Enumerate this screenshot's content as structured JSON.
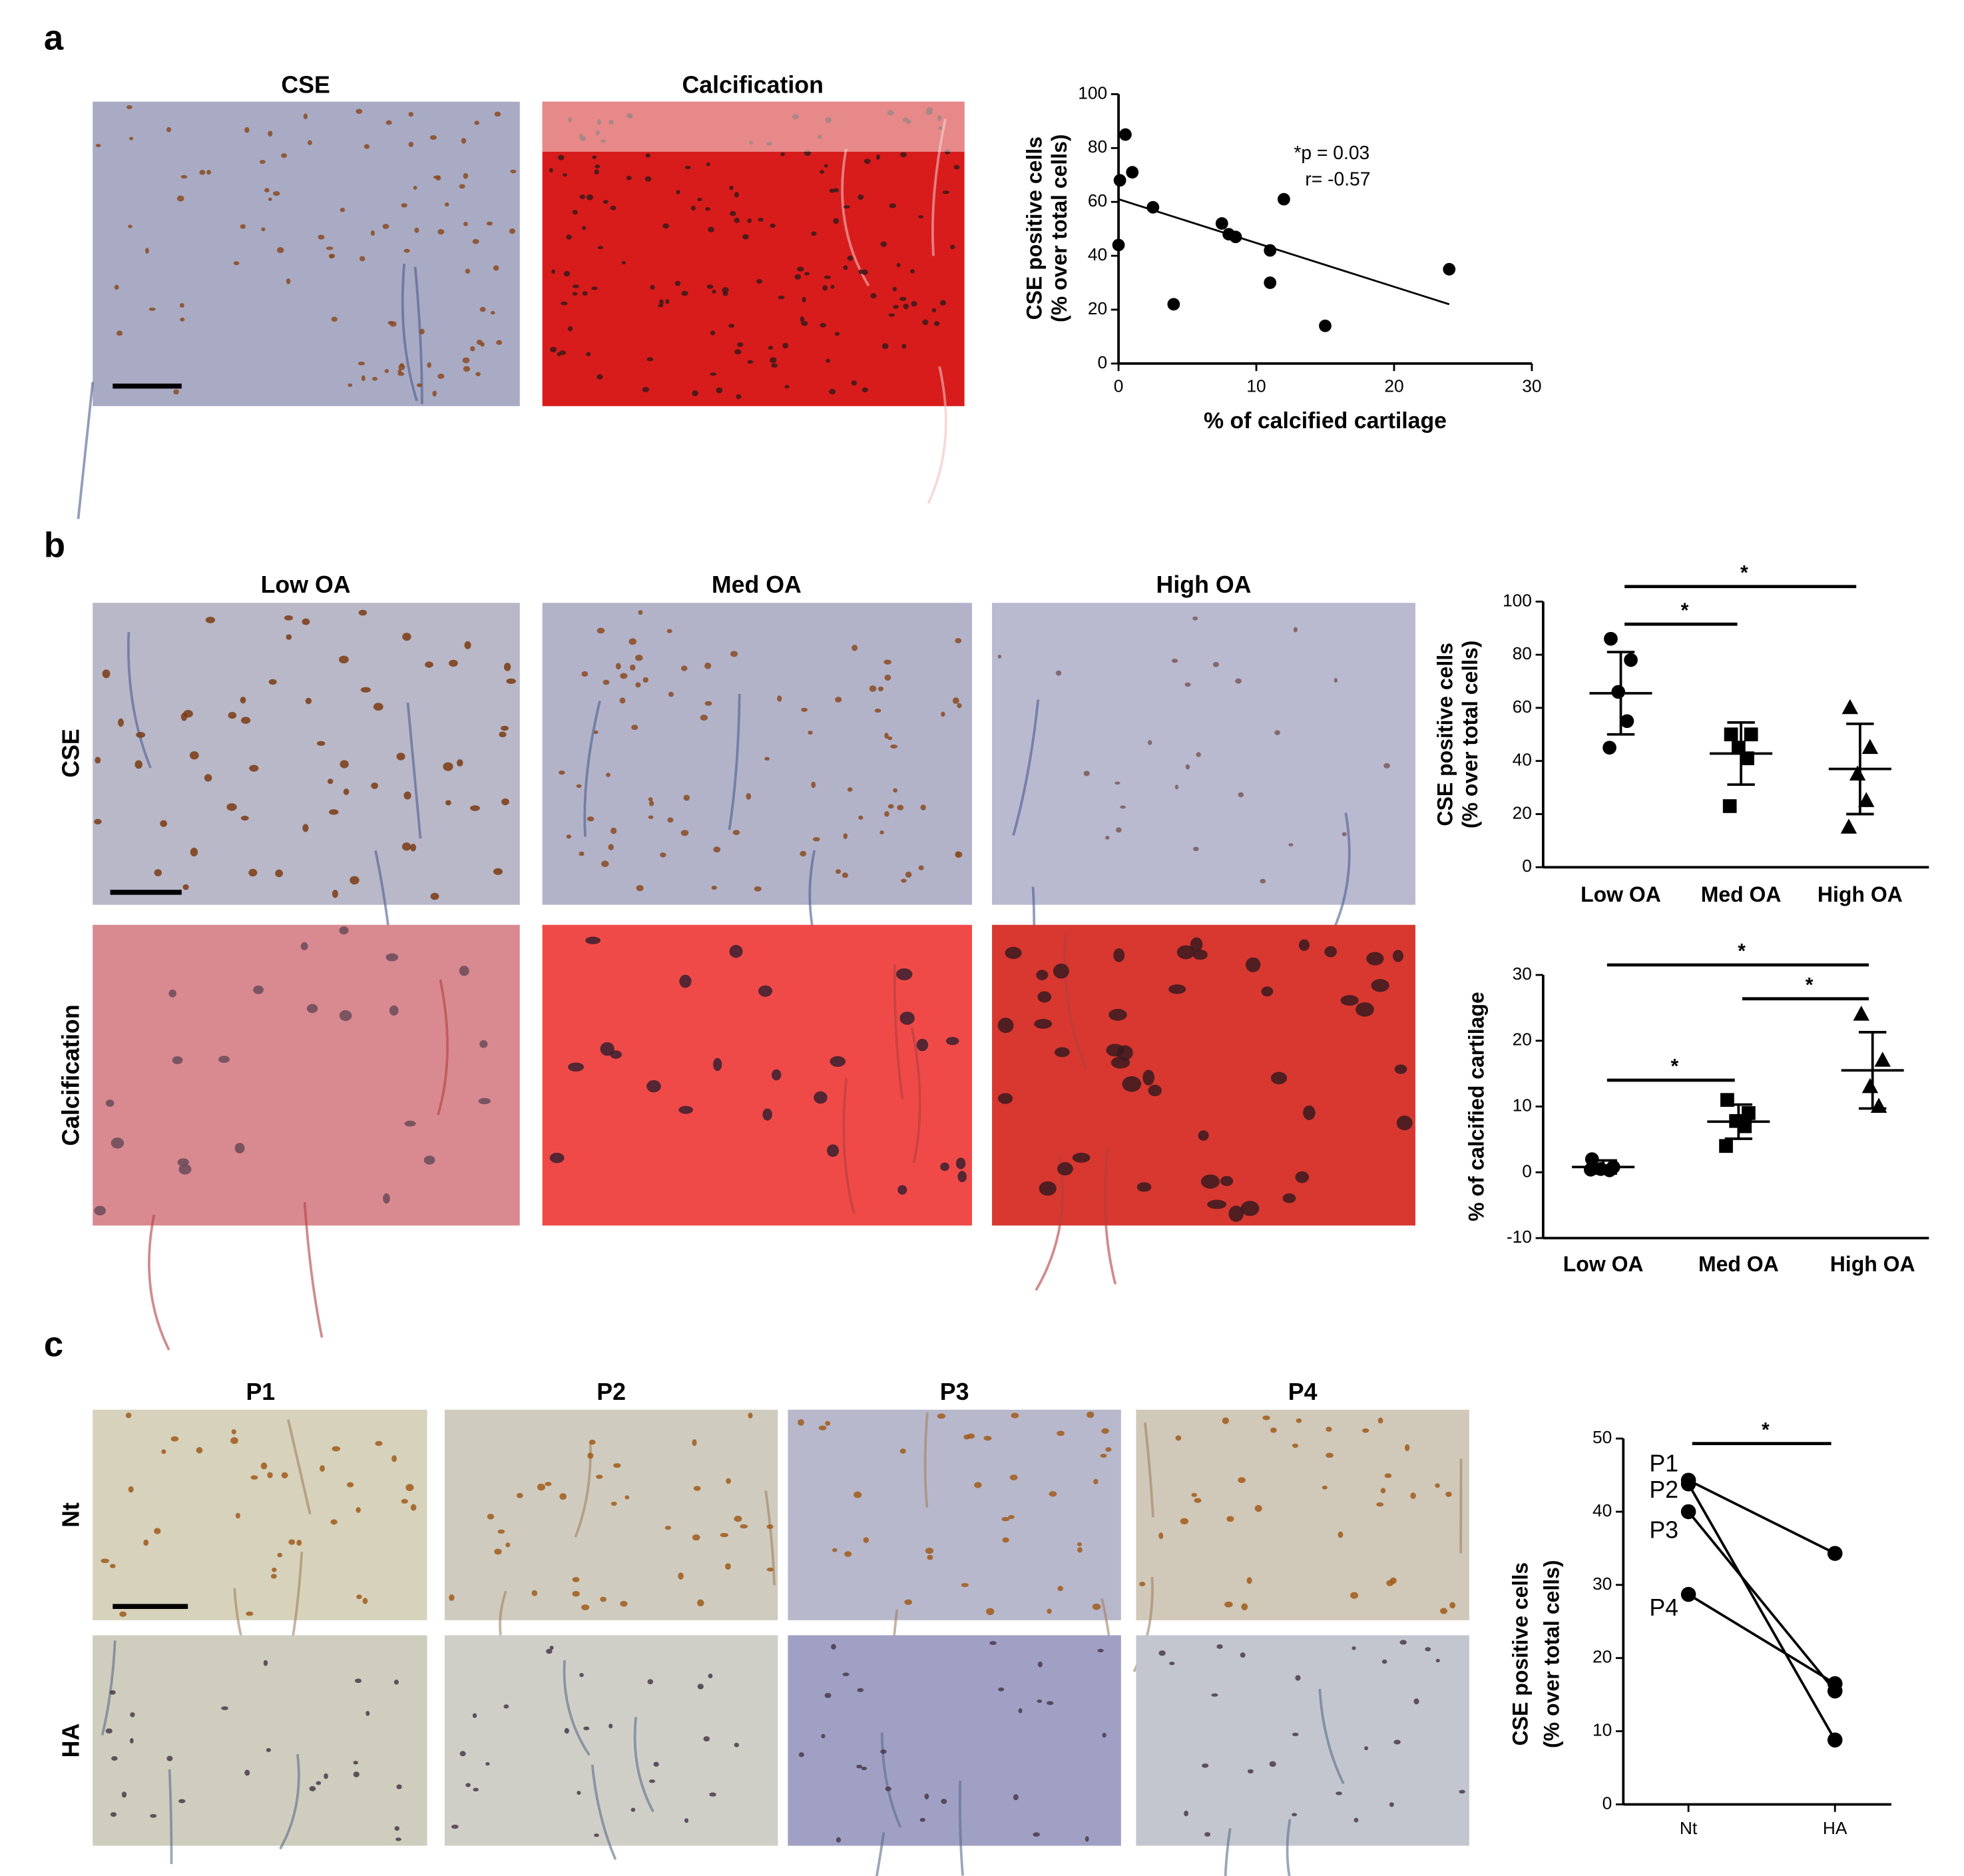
{
  "figure": {
    "panel_letters": [
      "a",
      "b",
      "c"
    ],
    "a": {
      "image_titles": [
        "CSE",
        "Calcification"
      ]
    },
    "b": {
      "column_titles": [
        "Low OA",
        "Med OA",
        "High OA"
      ],
      "row_titles": [
        "CSE",
        "Calcification"
      ]
    },
    "c": {
      "column_titles": [
        "P1",
        "P2",
        "P3",
        "P4"
      ],
      "row_titles": [
        "Nt",
        "HA"
      ]
    }
  },
  "chart_data": [
    {
      "type": "scatter",
      "x": [
        0,
        0.1,
        0.5,
        1,
        2.5,
        4,
        7.5,
        8,
        8.5,
        11,
        11,
        12,
        15,
        24
      ],
      "y": [
        44,
        68,
        85,
        71,
        58,
        22,
        52,
        48,
        47,
        42,
        30,
        61,
        14,
        35
      ],
      "color": "#000000",
      "trendline": {
        "x": [
          0,
          24
        ],
        "y": [
          61,
          22
        ]
      },
      "annotations": [
        "*p = 0.03",
        "r= -0.57"
      ],
      "xlabel": "% of calcified cartilage",
      "ylabel": [
        "CSE positive cells",
        "(% over total cells)"
      ],
      "xlim": [
        0,
        30
      ],
      "xticks": [
        0,
        10,
        20,
        30
      ],
      "ylim": [
        0,
        100
      ],
      "yticks": [
        0,
        20,
        40,
        60,
        80,
        100
      ]
    },
    {
      "type": "dot",
      "categories": [
        "Low OA",
        "Med OA",
        "High OA"
      ],
      "points": [
        [
          86,
          78,
          66,
          55,
          45
        ],
        [
          50,
          50,
          45,
          41,
          23
        ],
        [
          60,
          45,
          35,
          25,
          15
        ]
      ],
      "mean": [
        65.5,
        42.8,
        37
      ],
      "sd": [
        15.5,
        11.7,
        17
      ],
      "markers": [
        "circle",
        "square",
        "triangle"
      ],
      "color": "#000000",
      "significance": [
        {
          "from": "Low OA",
          "to": "Med OA",
          "label": "*"
        },
        {
          "from": "Low OA",
          "to": "High OA",
          "label": "*"
        }
      ],
      "ylabel": [
        "CSE positive cells",
        "(% over total cells)"
      ],
      "ylim": [
        0,
        100
      ],
      "yticks": [
        0,
        20,
        40,
        60,
        80,
        100
      ]
    },
    {
      "type": "dot",
      "categories": [
        "Low OA",
        "Med OA",
        "High OA"
      ],
      "points": [
        [
          2,
          0.8,
          0.5,
          0.3,
          0.4
        ],
        [
          11,
          9,
          7.8,
          7,
          4
        ],
        [
          24,
          17,
          13,
          10
        ]
      ],
      "mean": [
        0.8,
        7.7,
        15.5
      ],
      "sd": [
        1,
        2.6,
        5.8
      ],
      "markers": [
        "circle",
        "square",
        "triangle"
      ],
      "color": "#000000",
      "significance": [
        {
          "from": "Low OA",
          "to": "Med OA",
          "label": "*"
        },
        {
          "from": "Med OA",
          "to": "High OA",
          "label": "*"
        },
        {
          "from": "Low OA",
          "to": "High OA",
          "label": "*"
        }
      ],
      "ylabel": [
        "% of calcified cartilage"
      ],
      "ylim": [
        -10,
        30
      ],
      "yticks": [
        -10,
        0,
        10,
        20,
        30
      ]
    },
    {
      "type": "line",
      "categories": [
        "Nt",
        "HA"
      ],
      "series": [
        {
          "name": "P1",
          "values": [
            44.3,
            34.3
          ]
        },
        {
          "name": "P2",
          "values": [
            43.8,
            8.8
          ]
        },
        {
          "name": "P3",
          "values": [
            40,
            15.5
          ]
        },
        {
          "name": "P4",
          "values": [
            28.7,
            16.5
          ]
        }
      ],
      "color": "#000000",
      "significance": [
        {
          "from": "Nt",
          "to": "HA",
          "label": "*"
        }
      ],
      "ylabel": [
        "CSE positive cells",
        "(% over total cells)"
      ],
      "ylim": [
        0,
        50
      ],
      "yticks": [
        0,
        10,
        20,
        30,
        40,
        50
      ]
    }
  ]
}
